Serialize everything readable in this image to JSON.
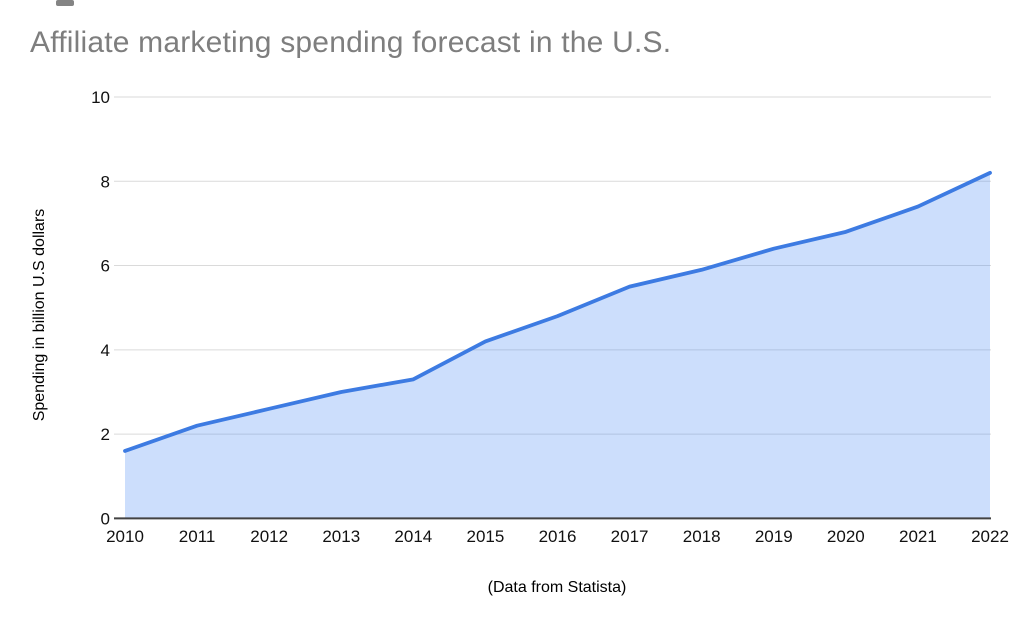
{
  "chart_data": {
    "type": "area",
    "title": "Affiliate marketing spending forecast in the U.S.",
    "categories": [
      "2010",
      "2011",
      "2012",
      "2013",
      "2014",
      "2015",
      "2016",
      "2017",
      "2018",
      "2019",
      "2020",
      "2021",
      "2022"
    ],
    "values": [
      1.6,
      2.2,
      2.6,
      3.0,
      3.3,
      4.2,
      4.8,
      5.5,
      5.9,
      6.4,
      6.8,
      7.4,
      8.2
    ],
    "xlabel": "",
    "ylabel": "Spending in billion U.S dollars",
    "caption": "(Data from Statista)",
    "ylim": [
      0,
      10
    ],
    "yticks": [
      0,
      2,
      4,
      6,
      8,
      10
    ],
    "grid": true,
    "legend": false,
    "colors": {
      "line": "#3d7be2",
      "fill": "rgba(66,133,244,0.27)",
      "grid": "#dadada",
      "axis": "#424242",
      "tick": "#111111",
      "title": "#7e7e7e"
    }
  }
}
